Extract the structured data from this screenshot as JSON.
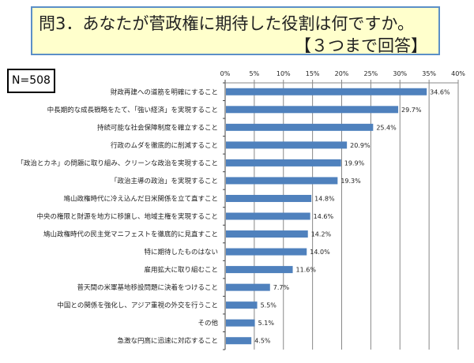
{
  "title": {
    "line1": "問3．あなたが菅政権に期待した役割は何ですか。",
    "line2": "【３つまで回答】"
  },
  "sample": "N=508",
  "chart_data": {
    "type": "bar",
    "orientation": "horizontal",
    "xlim": [
      0,
      40
    ],
    "ticks": [
      "0%",
      "5%",
      "10%",
      "15%",
      "20%",
      "25%",
      "30%",
      "35%",
      "40%"
    ],
    "grid": true,
    "bar_color": "#4F81BD",
    "categories": [
      "財政再建への道筋を明確にすること",
      "中長期的な成長戦略をたて、「強い経済」を実現すること",
      "持続可能な社会保障制度を確立すること",
      "行政のムダを徹底的に削減すること",
      "「政治とカネ」の問題に取り組み、クリーンな政治を実現すること",
      "「政治主導の政治」を実現すること",
      "鳩山政権時代に冷え込んだ日米関係を立て直すこと",
      "中央の権限と財源を地方に移譲し、地域主権を実現すること",
      "鳩山政権時代の民主党マニフェストを徹底的に見直すこと",
      "特に期待したものはない",
      "雇用拡大に取り組むこと",
      "普天間の米軍基地移設問題に決着をつけること",
      "中国との関係を強化し、アジア重視の外交を行うこと",
      "その他",
      "急激な円高に迅速に対応すること"
    ],
    "values": [
      34.6,
      29.7,
      25.4,
      20.9,
      19.9,
      19.3,
      14.8,
      14.6,
      14.2,
      14.0,
      11.6,
      7.7,
      5.5,
      5.1,
      4.5
    ],
    "labels": [
      "34.6%",
      "29.7%",
      "25.4%",
      "20.9%",
      "19.9%",
      "19.3%",
      "14.8%",
      "14.6%",
      "14.2%",
      "14.0%",
      "11.6%",
      "7.7%",
      "5.5%",
      "5.1%",
      "4.5%"
    ]
  }
}
